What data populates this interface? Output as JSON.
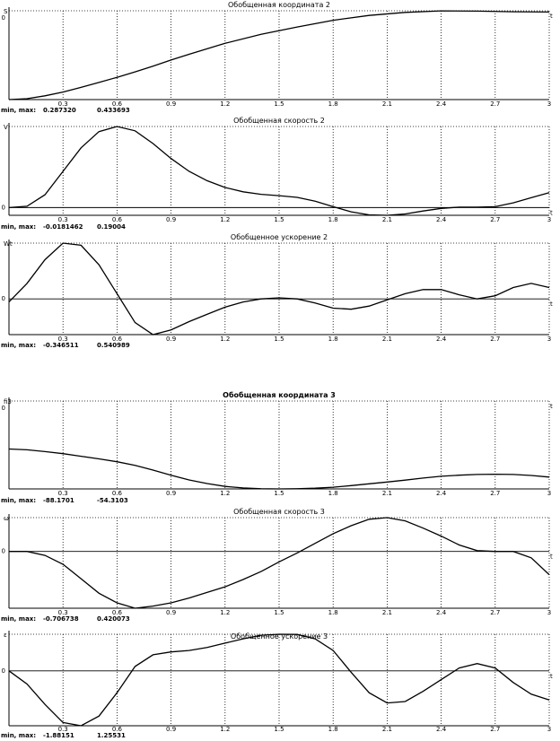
{
  "chart_data": [
    {
      "type": "line",
      "title": "Обобщенная координата 2",
      "ylabel": "S",
      "xlabel": "t",
      "x_ticks": [
        "0.3",
        "0.6",
        "0.9",
        "1.2",
        "1.5",
        "1.8",
        "2.1",
        "2.4",
        "2.7",
        "3"
      ],
      "xlim": [
        0,
        3
      ],
      "ylim": [
        0.28732,
        0.433693
      ],
      "y_ticks": [
        "0"
      ],
      "show_zero": false,
      "minmax_label": "min, max:",
      "min_text": "0.287320",
      "max_text": "0.433693",
      "grid": true,
      "series": [
        {
          "x": [
            0,
            0.1,
            0.2,
            0.3,
            0.4,
            0.5,
            0.6,
            0.7,
            0.8,
            0.9,
            1.0,
            1.2,
            1.4,
            1.6,
            1.8,
            2.0,
            2.2,
            2.4,
            2.6,
            2.8,
            3.0
          ],
          "y": [
            0.2873,
            0.2888,
            0.2935,
            0.2998,
            0.3075,
            0.3155,
            0.324,
            0.333,
            0.3425,
            0.3525,
            0.362,
            0.38,
            0.395,
            0.407,
            0.418,
            0.426,
            0.431,
            0.4336,
            0.4331,
            0.432,
            0.4316
          ]
        }
      ]
    },
    {
      "type": "line",
      "title": "Обобщенная скорость 2",
      "ylabel": "V",
      "xlabel": "t",
      "x_ticks": [
        "0.3",
        "0.6",
        "0.9",
        "1.2",
        "1.5",
        "1.8",
        "2.1",
        "2.4",
        "2.7",
        "3"
      ],
      "xlim": [
        0,
        3
      ],
      "ylim": [
        -0.0181462,
        0.19004
      ],
      "y_ticks": [
        "0"
      ],
      "show_zero": true,
      "minmax_label": "min, max:",
      "min_text": "-0.0181462",
      "max_text": "0.19004",
      "grid": true,
      "series": [
        {
          "x": [
            0,
            0.1,
            0.2,
            0.3,
            0.4,
            0.5,
            0.6,
            0.7,
            0.8,
            0.9,
            1.0,
            1.1,
            1.2,
            1.3,
            1.4,
            1.5,
            1.6,
            1.7,
            1.8,
            1.9,
            2.0,
            2.1,
            2.2,
            2.3,
            2.4,
            2.5,
            2.6,
            2.7,
            2.8,
            2.9,
            3.0
          ],
          "y": [
            0.0,
            0.003,
            0.03,
            0.085,
            0.14,
            0.178,
            0.19,
            0.18,
            0.15,
            0.115,
            0.085,
            0.063,
            0.047,
            0.037,
            0.031,
            0.028,
            0.024,
            0.015,
            0.002,
            -0.01,
            -0.017,
            -0.0181,
            -0.015,
            -0.008,
            -0.002,
            0.001,
            0.001,
            0.002,
            0.011,
            0.023,
            0.035
          ]
        }
      ]
    },
    {
      "type": "line",
      "title": "Обобщенное ускорение 2",
      "ylabel": "Wt",
      "xlabel": "t",
      "x_ticks": [
        "0.3",
        "0.6",
        "0.9",
        "1.2",
        "1.5",
        "1.8",
        "2.1",
        "2.4",
        "2.7",
        "3"
      ],
      "xlim": [
        0,
        3
      ],
      "ylim": [
        -0.346511,
        0.540989
      ],
      "y_ticks": [
        "0"
      ],
      "show_zero": true,
      "minmax_label": "min, max:",
      "min_text": "-0.346511",
      "max_text": "0.540989",
      "grid": true,
      "series": [
        {
          "x": [
            0,
            0.1,
            0.2,
            0.3,
            0.4,
            0.5,
            0.6,
            0.7,
            0.8,
            0.9,
            1.0,
            1.1,
            1.2,
            1.3,
            1.4,
            1.5,
            1.6,
            1.7,
            1.8,
            1.9,
            2.0,
            2.1,
            2.2,
            2.3,
            2.4,
            2.5,
            2.6,
            2.7,
            2.8,
            2.9,
            3.0
          ],
          "y": [
            -0.03,
            0.15,
            0.38,
            0.541,
            0.52,
            0.33,
            0.05,
            -0.23,
            -0.3465,
            -0.3,
            -0.22,
            -0.15,
            -0.08,
            -0.03,
            0.0,
            0.01,
            0.0,
            -0.04,
            -0.09,
            -0.1,
            -0.07,
            -0.01,
            0.05,
            0.09,
            0.09,
            0.04,
            0.0,
            0.03,
            0.11,
            0.15,
            0.11
          ]
        }
      ]
    },
    {
      "type": "line",
      "title": "Обобщенная координата 3",
      "title_bold": true,
      "ylabel": "fi3",
      "xlabel": "t",
      "x_ticks": [
        "0.3",
        "0.6",
        "0.9",
        "1.2",
        "1.5",
        "1.8",
        "2.1",
        "2.4",
        "2.7",
        "3"
      ],
      "xlim": [
        0,
        3
      ],
      "ylim": [
        -88.1701,
        -54.3103
      ],
      "y_ticks": [
        "0"
      ],
      "show_zero": false,
      "minmax_label": "min, max:",
      "min_text": "-88.1701",
      "max_text": "-54.3103",
      "grid": true,
      "series": [
        {
          "x": [
            0,
            0.1,
            0.2,
            0.3,
            0.4,
            0.5,
            0.6,
            0.7,
            0.8,
            0.9,
            1.0,
            1.1,
            1.2,
            1.3,
            1.4,
            1.5,
            1.6,
            1.7,
            1.8,
            1.9,
            2.0,
            2.1,
            2.2,
            2.3,
            2.4,
            2.5,
            2.6,
            2.7,
            2.8,
            2.9,
            3.0
          ],
          "y": [
            -72.8,
            -73.1,
            -73.8,
            -74.6,
            -75.6,
            -76.6,
            -77.7,
            -79.1,
            -80.9,
            -82.9,
            -84.7,
            -86.1,
            -87.2,
            -87.8,
            -88.1,
            -88.17,
            -88.1,
            -87.9,
            -87.5,
            -86.9,
            -86.2,
            -85.5,
            -84.8,
            -84.0,
            -83.3,
            -82.9,
            -82.6,
            -82.5,
            -82.6,
            -83.0,
            -83.6
          ]
        }
      ]
    },
    {
      "type": "line",
      "title": "Обобщенная скорость 3",
      "ylabel": "ω",
      "xlabel": "t",
      "x_ticks": [
        "0.3",
        "0.6",
        "0.9",
        "1.2",
        "1.5",
        "1.8",
        "2.1",
        "2.4",
        "2.7",
        "3"
      ],
      "xlim": [
        0,
        3
      ],
      "ylim": [
        -0.706738,
        0.420073
      ],
      "y_ticks": [
        "0"
      ],
      "show_zero": true,
      "minmax_label": "min, max:",
      "min_text": "-0.706738",
      "max_text": "0.420073",
      "grid": true,
      "series": [
        {
          "x": [
            0,
            0.1,
            0.2,
            0.3,
            0.4,
            0.5,
            0.6,
            0.7,
            0.8,
            0.9,
            1.0,
            1.1,
            1.2,
            1.3,
            1.4,
            1.5,
            1.6,
            1.7,
            1.8,
            1.9,
            2.0,
            2.1,
            2.2,
            2.3,
            2.4,
            2.5,
            2.6,
            2.7,
            2.8,
            2.9,
            3.0
          ],
          "y": [
            0.0,
            0.0,
            -0.05,
            -0.16,
            -0.34,
            -0.52,
            -0.64,
            -0.7067,
            -0.68,
            -0.64,
            -0.58,
            -0.51,
            -0.44,
            -0.35,
            -0.25,
            -0.13,
            -0.02,
            0.1,
            0.22,
            0.32,
            0.4,
            0.42,
            0.38,
            0.29,
            0.19,
            0.08,
            0.01,
            0.0,
            0.0,
            -0.08,
            -0.29
          ]
        }
      ]
    },
    {
      "type": "line",
      "title": "Обобщенное ускорение 3",
      "ylabel": "ε",
      "xlabel": "t",
      "x_ticks": [
        "0.3",
        "0.6",
        "0.9",
        "1.2",
        "1.5",
        "1.8",
        "2.1",
        "2.4",
        "2.7",
        "3"
      ],
      "xlim": [
        0,
        3
      ],
      "ylim": [
        -1.88151,
        1.25531
      ],
      "y_ticks": [
        "0"
      ],
      "show_zero": true,
      "minmax_label": "min, max:",
      "min_text": "-1.88151",
      "max_text": "1.25531",
      "grid": true,
      "series": [
        {
          "x": [
            0,
            0.1,
            0.2,
            0.3,
            0.4,
            0.5,
            0.6,
            0.7,
            0.8,
            0.9,
            1.0,
            1.1,
            1.2,
            1.3,
            1.4,
            1.5,
            1.6,
            1.7,
            1.8,
            1.9,
            2.0,
            2.1,
            2.2,
            2.3,
            2.4,
            2.5,
            2.6,
            2.7,
            2.8,
            2.9,
            3.0
          ],
          "y": [
            0.0,
            -0.45,
            -1.15,
            -1.77,
            -1.8815,
            -1.55,
            -0.75,
            0.15,
            0.55,
            0.65,
            0.7,
            0.8,
            0.95,
            1.1,
            1.22,
            1.2553,
            1.25,
            1.1,
            0.7,
            -0.05,
            -0.75,
            -1.1,
            -1.05,
            -0.7,
            -0.3,
            0.1,
            0.25,
            0.1,
            -0.4,
            -0.8,
            -1.0
          ]
        }
      ]
    }
  ]
}
